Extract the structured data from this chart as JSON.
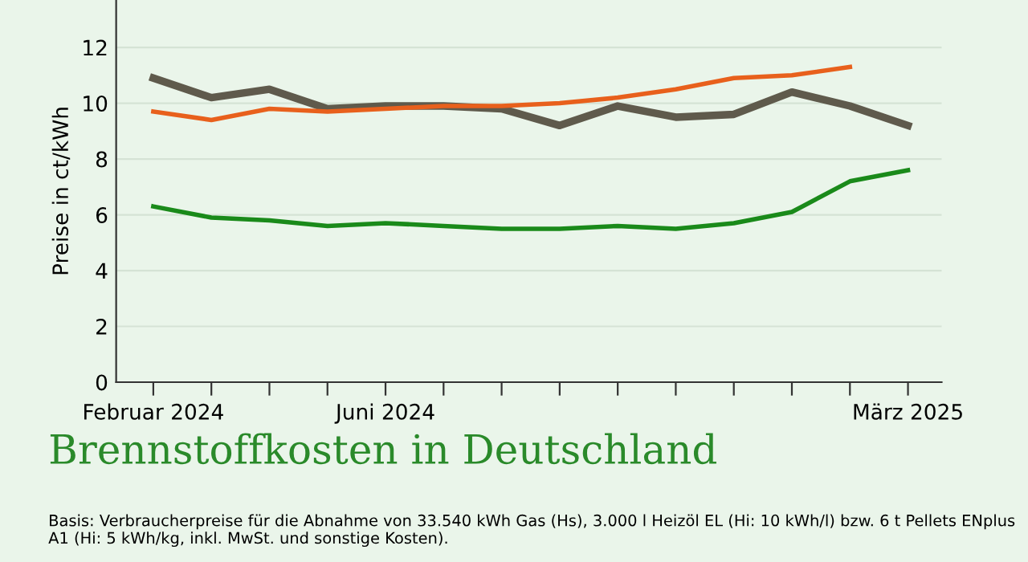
{
  "chart_data": {
    "type": "line",
    "title": "Brennstoffkosten in Deutschland",
    "ylabel": "Preise in ct/kWh",
    "categories": [
      "Februar 2024",
      null,
      null,
      null,
      "Juni 2024",
      null,
      null,
      null,
      null,
      null,
      null,
      null,
      null,
      "März 2025"
    ],
    "series": [
      {
        "color": "#5f5a4c",
        "values": [
          10.9,
          10.2,
          10.5,
          9.8,
          9.9,
          9.9,
          9.8,
          9.2,
          9.9,
          9.5,
          9.6,
          10.4,
          9.9,
          9.2
        ]
      },
      {
        "color": "#e8601c",
        "values": [
          9.7,
          9.4,
          9.8,
          9.7,
          9.8,
          9.9,
          9.9,
          10.0,
          10.2,
          10.5,
          10.9,
          11.0,
          11.3,
          null
        ]
      },
      {
        "color": "#1a8a1a",
        "values": [
          6.3,
          5.9,
          5.8,
          5.6,
          5.7,
          5.6,
          5.5,
          5.5,
          5.6,
          5.5,
          5.7,
          6.1,
          7.2,
          7.6
        ]
      }
    ],
    "ylim": [
      0,
      13.7
    ],
    "yticks": [
      0,
      2,
      4,
      6,
      8,
      10,
      12
    ],
    "grid": "y",
    "legend": false,
    "marker": "none",
    "line_style": "solid",
    "annotations": [
      "Basis: Verbraucherpreise für die Abnahme von 33.540 kWh Gas (Hs), 3.000 l Heizöl EL (Hi: 10 kWh/l) bzw. 6 t Pellets ENplus A1 (Hi: 5 kWh/kg, inkl. MwSt. und sonstige Kosten)."
    ]
  }
}
